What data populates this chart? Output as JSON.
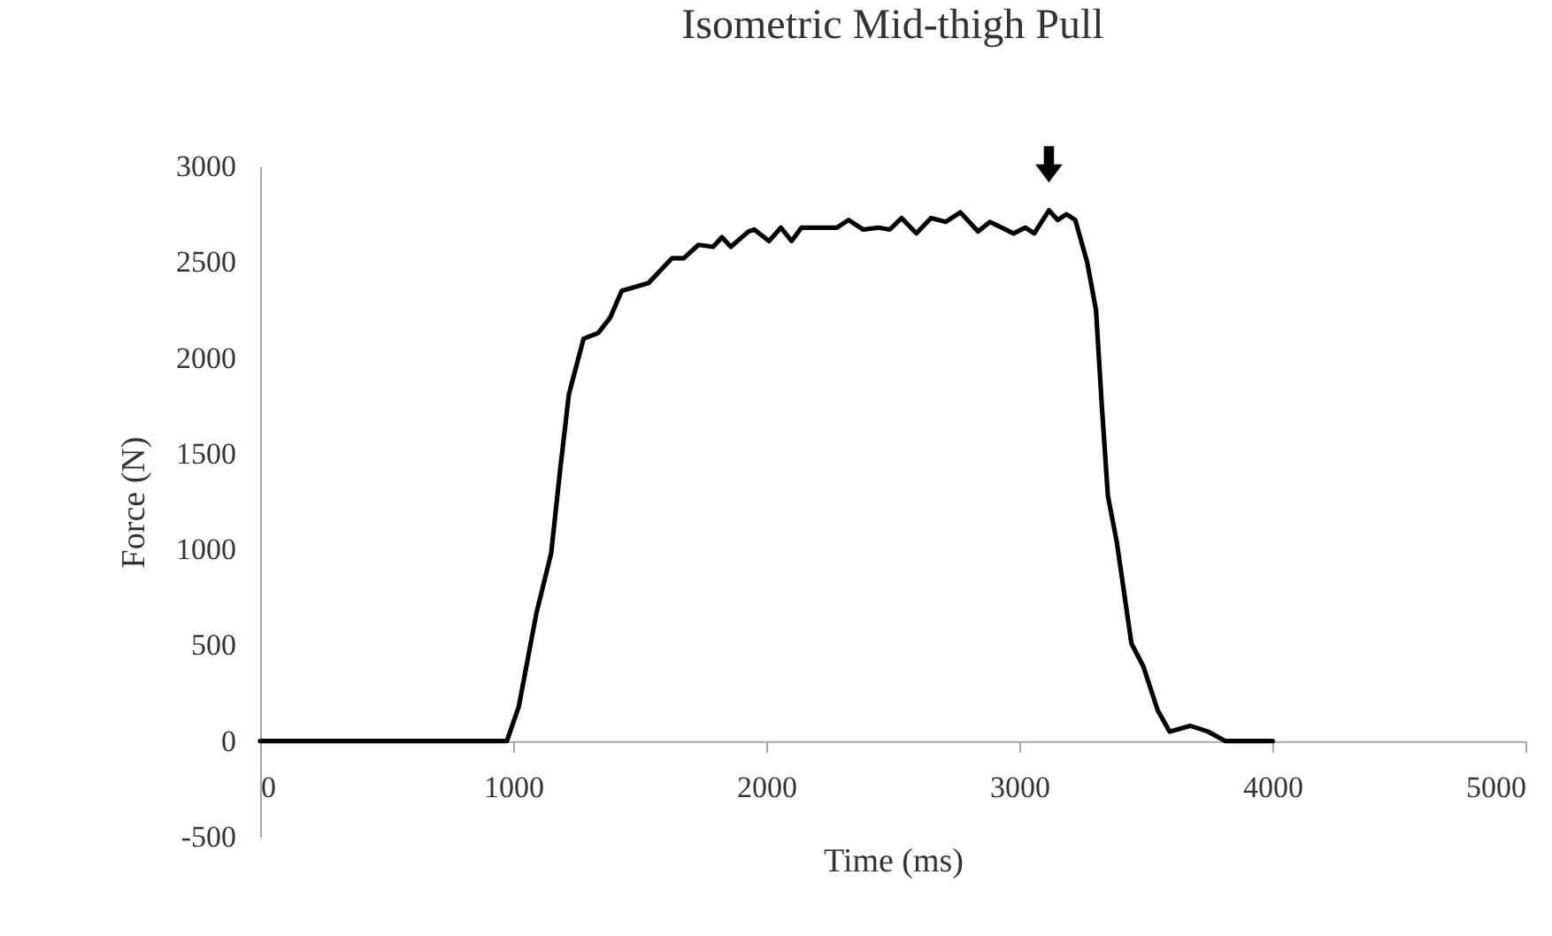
{
  "chart_data": {
    "type": "line",
    "title": "Isometric Mid-thigh Pull",
    "xlabel": "Time (ms)",
    "ylabel": "Force (N)",
    "xlim": [
      0,
      5000
    ],
    "xticks": [
      0,
      1000,
      2000,
      3000,
      4000,
      5000
    ],
    "ylim": [
      -500,
      3000
    ],
    "yticks": [
      -500,
      0,
      500,
      1000,
      1500,
      2000,
      2500,
      3000
    ],
    "grid": false,
    "legend": false,
    "marker": "none",
    "line_style": "solid",
    "series": [
      {
        "color": "#000000",
        "x": [
          0,
          975,
          1022,
          1092,
          1150,
          1185,
          1220,
          1278,
          1336,
          1383,
          1429,
          1534,
          1627,
          1674,
          1732,
          1790,
          1825,
          1860,
          1930,
          1953,
          2011,
          2058,
          2100,
          2139,
          2186,
          2279,
          2325,
          2383,
          2442,
          2488,
          2535,
          2593,
          2651,
          2709,
          2767,
          2837,
          2884,
          2977,
          3023,
          3059,
          3117,
          3152,
          3186,
          3221,
          3268,
          3303,
          3326,
          3350,
          3385,
          3443,
          3490,
          3547,
          3594,
          3675,
          3745,
          3815,
          4001
        ],
        "values": [
          0,
          0,
          180,
          670,
          980,
          1410,
          1810,
          2100,
          2130,
          2210,
          2350,
          2390,
          2520,
          2520,
          2590,
          2580,
          2630,
          2580,
          2660,
          2670,
          2610,
          2680,
          2610,
          2680,
          2680,
          2680,
          2720,
          2670,
          2680,
          2670,
          2730,
          2650,
          2730,
          2710,
          2760,
          2660,
          2710,
          2650,
          2680,
          2650,
          2770,
          2720,
          2750,
          2720,
          2500,
          2250,
          1750,
          1280,
          1040,
          510,
          390,
          160,
          50,
          80,
          50,
          0,
          0
        ]
      }
    ]
  }
}
